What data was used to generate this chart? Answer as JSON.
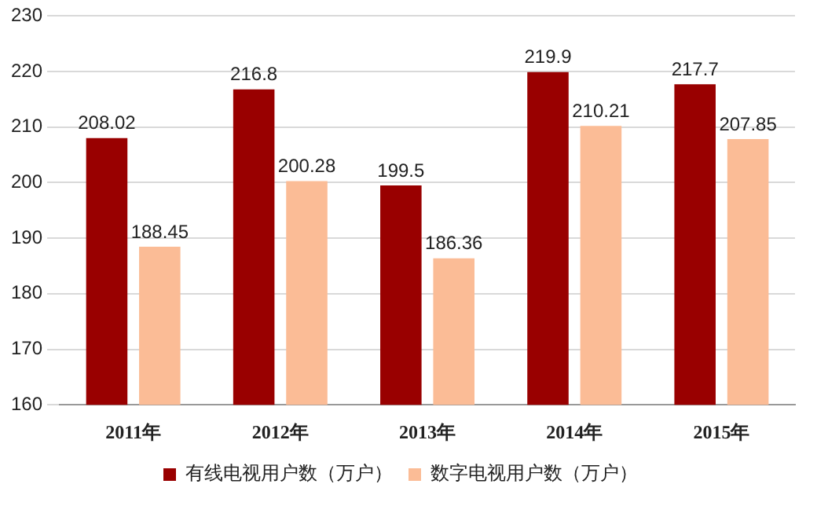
{
  "chart_data": {
    "type": "bar",
    "categories": [
      "2011年",
      "2012年",
      "2013年",
      "2014年",
      "2015年"
    ],
    "series": [
      {
        "name": "有线电视用户数（万户）",
        "color": "#990000",
        "values": [
          208.02,
          216.8,
          199.5,
          219.9,
          217.7
        ]
      },
      {
        "name": "数字电视用户数（万户）",
        "color": "#fbbc96",
        "values": [
          188.45,
          200.28,
          186.36,
          210.21,
          207.85
        ]
      }
    ],
    "ylim": [
      160,
      230
    ],
    "yticks": [
      160,
      170,
      180,
      190,
      200,
      210,
      220,
      230
    ],
    "grid": "y",
    "legend": "bottom",
    "data_labels": true
  }
}
